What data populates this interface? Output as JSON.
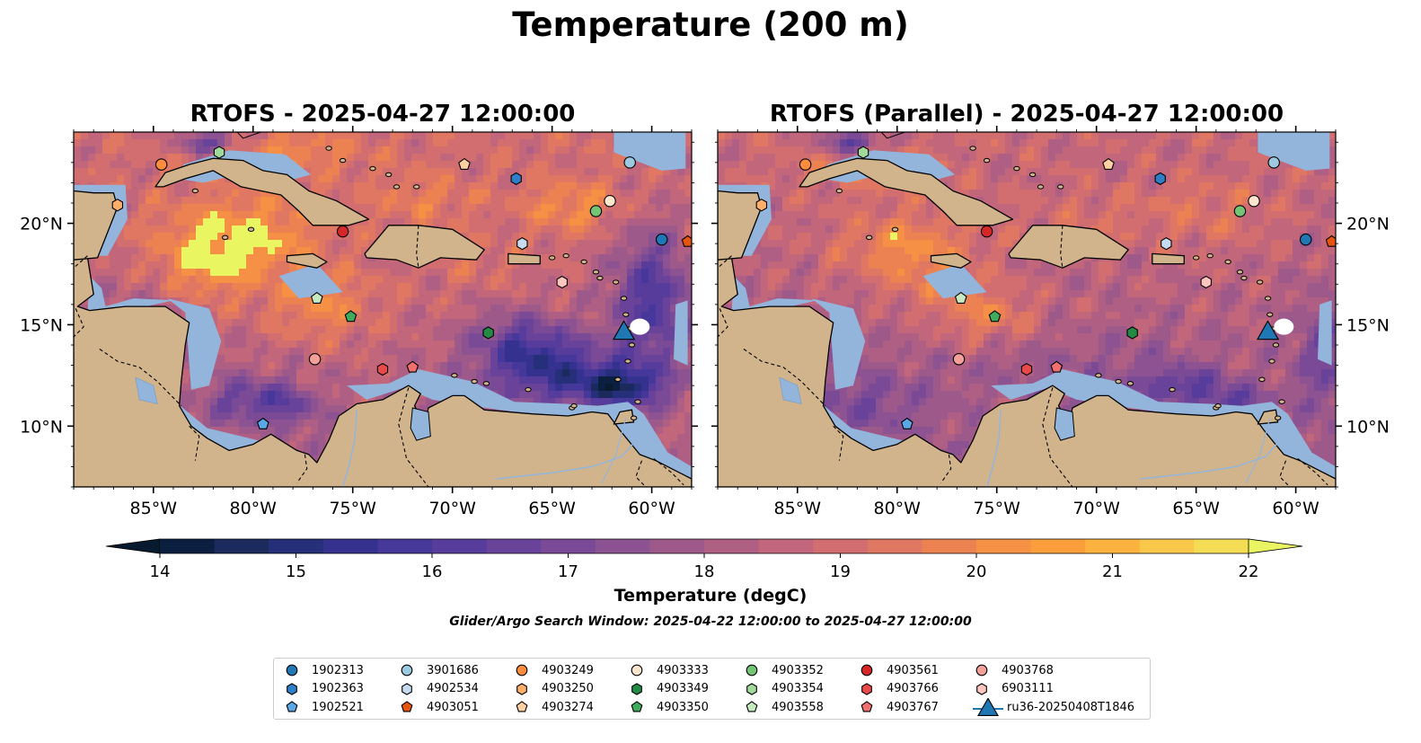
{
  "figure": {
    "title": "Temperature (200 m)"
  },
  "panels": [
    {
      "title": "RTOFS - 2025-04-27 12:00:00",
      "variant": "rtofs"
    },
    {
      "title": "RTOFS (Parallel) - 2025-04-27 12:00:00",
      "variant": "parallel"
    }
  ],
  "map": {
    "lon_range": [
      -89,
      -58
    ],
    "lat_range": [
      7,
      24.5
    ],
    "x_ticks": [
      "85°W",
      "80°W",
      "75°W",
      "70°W",
      "65°W",
      "60°W"
    ],
    "x_tick_values": [
      -85,
      -80,
      -75,
      -70,
      -65,
      -60
    ],
    "y_ticks": [
      "20°N",
      "15°N",
      "10°N"
    ],
    "y_tick_values": [
      20,
      15,
      10
    ]
  },
  "colorbar": {
    "label": "Temperature (degC)",
    "ticks": [
      "14",
      "15",
      "16",
      "17",
      "18",
      "19",
      "20",
      "21",
      "22"
    ],
    "min": 14,
    "max": 22,
    "step": 0.5,
    "extend": "both",
    "colors": [
      "#0b2040",
      "#1a2a5c",
      "#26307a",
      "#35318f",
      "#46379a",
      "#573c9c",
      "#69439a",
      "#7b4a96",
      "#8d5291",
      "#9e598b",
      "#b05f84",
      "#c2667b",
      "#d26d70",
      "#e07762",
      "#ec8252",
      "#f59044",
      "#fa9f3c",
      "#fcb23e",
      "#f9c74a",
      "#f4dd55"
    ],
    "under_color": "#081a2e",
    "over_color": "#e9f561"
  },
  "search_window": "Glider/Argo Search Window: 2025-04-22 12:00:00 to 2025-04-27 12:00:00",
  "legend": {
    "items": [
      {
        "label": "1902313",
        "shape": "circle",
        "color": "#1f77b4",
        "lon": -59.5,
        "lat": 19.2
      },
      {
        "label": "1902363",
        "shape": "hexagon",
        "color": "#2f7fc8",
        "lon": -66.8,
        "lat": 22.2
      },
      {
        "label": "1902521",
        "shape": "pentagon",
        "color": "#5aa7e6",
        "lon": -79.5,
        "lat": 10.1
      },
      {
        "label": "3901686",
        "shape": "circle",
        "color": "#9ecae1",
        "lon": -61.1,
        "lat": 23.0
      },
      {
        "label": "4902534",
        "shape": "hexagon",
        "color": "#c6dbef",
        "lon": -66.5,
        "lat": 19.0
      },
      {
        "label": "4903051",
        "shape": "pentagon",
        "color": "#e6550d",
        "lon": -58.2,
        "lat": 19.1
      },
      {
        "label": "4903249",
        "shape": "circle",
        "color": "#fd8d3c",
        "lon": -84.6,
        "lat": 22.9
      },
      {
        "label": "4903250",
        "shape": "hexagon",
        "color": "#fdae6b",
        "lon": -86.8,
        "lat": 20.9
      },
      {
        "label": "4903274",
        "shape": "pentagon",
        "color": "#fdd0a2",
        "lon": -69.4,
        "lat": 22.9
      },
      {
        "label": "4903333",
        "shape": "circle",
        "color": "#fee6ce",
        "lon": -62.1,
        "lat": 21.1
      },
      {
        "label": "4903349",
        "shape": "hexagon",
        "color": "#238b45",
        "lon": -68.2,
        "lat": 14.6
      },
      {
        "label": "4903350",
        "shape": "pentagon",
        "color": "#41ab5d",
        "lon": -75.1,
        "lat": 15.4
      },
      {
        "label": "4903352",
        "shape": "circle",
        "color": "#74c476",
        "lon": -62.8,
        "lat": 20.6
      },
      {
        "label": "4903354",
        "shape": "hexagon",
        "color": "#a1d99b",
        "lon": -81.7,
        "lat": 23.5
      },
      {
        "label": "4903558",
        "shape": "pentagon",
        "color": "#c7e9c0",
        "lon": -76.8,
        "lat": 16.3
      },
      {
        "label": "4903561",
        "shape": "circle",
        "color": "#d62728",
        "lon": -75.5,
        "lat": 19.6
      },
      {
        "label": "4903766",
        "shape": "hexagon",
        "color": "#e84a4a",
        "lon": -73.5,
        "lat": 12.8
      },
      {
        "label": "4903767",
        "shape": "pentagon",
        "color": "#f07070",
        "lon": -72.0,
        "lat": 12.9
      },
      {
        "label": "4903768",
        "shape": "circle",
        "color": "#f4a09a",
        "lon": -76.9,
        "lat": 13.3
      },
      {
        "label": "6903111",
        "shape": "hexagon",
        "color": "#fcc5c0",
        "lon": -64.5,
        "lat": 17.1
      },
      {
        "label": "ru36-20250408T1846",
        "shape": "triangle",
        "color": "#1f77b4",
        "lon": -61.4,
        "lat": 14.7
      }
    ]
  }
}
